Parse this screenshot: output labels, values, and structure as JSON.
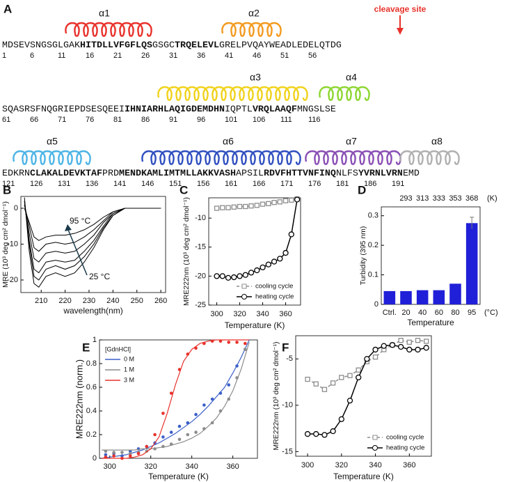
{
  "sequence_panel": {
    "label": "A",
    "cleavage_label": "cleavage site",
    "helices": [
      {
        "label": "α1",
        "color": "#e8322b"
      },
      {
        "label": "α2",
        "color": "#f39a1e"
      },
      {
        "label": "α3",
        "color": "#f0d21a"
      },
      {
        "label": "α4",
        "color": "#8cd630"
      },
      {
        "label": "α5",
        "color": "#4cb4e6"
      },
      {
        "label": "α6",
        "color": "#2f4fc0"
      },
      {
        "label": "α7",
        "color": "#8a4fb5"
      },
      {
        "label": "α8",
        "color": "#b0b0b0"
      }
    ],
    "lines": [
      {
        "segments": [
          {
            "text": "MDSEVSNGSGLGAK",
            "bold": false
          },
          {
            "text": "HITDLLVFGFLQS",
            "bold": true
          },
          {
            "text": "GSGC",
            "bold": false
          },
          {
            "text": "TRQELEVL",
            "bold": true
          },
          {
            "text": "GRELPVQAYWEADLEDELQTDG",
            "bold": false
          }
        ],
        "numbers": [
          1,
          6,
          11,
          16,
          21,
          26,
          31,
          36,
          41,
          46,
          51,
          56
        ]
      },
      {
        "segments": [
          {
            "text": "SQASRSFNQGRIEPDSESQEEI",
            "bold": false
          },
          {
            "text": "IHNIARHLAQIGDEMDHN",
            "bold": true
          },
          {
            "text": "IQPTL",
            "bold": false
          },
          {
            "text": "VRQLAAQF",
            "bold": true
          },
          {
            "text": "MNGSLSE",
            "bold": false
          }
        ],
        "numbers": [
          61,
          66,
          71,
          76,
          81,
          86,
          91,
          96,
          101,
          106,
          111,
          116
        ]
      },
      {
        "segments": [
          {
            "text": "EDKRN",
            "bold": false
          },
          {
            "text": "CLAKALDEVKTAF",
            "bold": true
          },
          {
            "text": "PRD",
            "bold": false
          },
          {
            "text": "MENDKAMLIMTMLLAKKVASH",
            "bold": true
          },
          {
            "text": "APSIL",
            "bold": false
          },
          {
            "text": "RDVFHTTVNFINQ",
            "bold": true
          },
          {
            "text": "NLFS",
            "bold": false
          },
          {
            "text": "YVRNLVRN",
            "bold": true
          },
          {
            "text": "EMD",
            "bold": false
          }
        ],
        "numbers": [
          121,
          126,
          131,
          136,
          141,
          146,
          151,
          156,
          161,
          166,
          171,
          176,
          181,
          186,
          191
        ]
      }
    ]
  },
  "chart_data": [
    {
      "type": "line",
      "panel": "B",
      "ylabel": "MRE (10³ deg cm² dmol⁻¹)",
      "xlabel": "wavelength(nm)",
      "x": [
        203,
        205,
        207,
        209,
        212,
        216,
        220,
        224,
        228,
        232,
        236,
        240,
        245,
        250,
        260
      ],
      "xlim": [
        201.5,
        262
      ],
      "ylim": [
        -23.5,
        3.3
      ],
      "xticks": [
        210,
        220,
        230,
        240,
        250,
        260
      ],
      "yticks": [
        0,
        -10,
        -20
      ],
      "annotations": [
        {
          "text": "95 °C"
        },
        {
          "text": "25 °C"
        }
      ],
      "series": [
        {
          "color": "#000000",
          "values": [
            3,
            -12,
            -21,
            -22,
            -19,
            -18,
            -19,
            -18,
            -15,
            -11,
            -6,
            -2,
            0,
            0,
            0
          ]
        },
        {
          "color": "#000000",
          "values": [
            2,
            -10,
            -19,
            -20,
            -17,
            -16,
            -17,
            -16,
            -13.5,
            -10,
            -5.5,
            -2,
            0,
            0,
            0
          ]
        },
        {
          "color": "#000000",
          "values": [
            2,
            -9,
            -17,
            -18,
            -15,
            -14.5,
            -15,
            -14.5,
            -12,
            -9,
            -5,
            -1.5,
            0,
            0,
            0
          ]
        },
        {
          "color": "#000000",
          "values": [
            1,
            -7,
            -14,
            -15,
            -12.5,
            -12,
            -12.5,
            -12,
            -10,
            -7.5,
            -4,
            -1.5,
            0,
            0,
            0
          ]
        },
        {
          "color": "#000000",
          "values": [
            1,
            -5,
            -11,
            -12,
            -10,
            -9.5,
            -10,
            -9.5,
            -8,
            -6,
            -3.5,
            -1,
            0,
            0,
            0
          ]
        },
        {
          "color": "#000000",
          "values": [
            0,
            -4,
            -8,
            -9,
            -8,
            -7.5,
            -7.5,
            -7,
            -6,
            -4.5,
            -2.5,
            -1,
            0,
            0,
            0
          ]
        }
      ]
    },
    {
      "type": "line",
      "panel": "C",
      "ylabel": "MRE222nm (10³ deg cm² dmol⁻¹)",
      "xlabel": "Temperature (K)",
      "x": [
        300,
        305,
        310,
        315,
        320,
        325,
        330,
        335,
        340,
        345,
        350,
        355,
        360,
        365,
        370
      ],
      "xlim": [
        293,
        373
      ],
      "ylim": [
        -25,
        -6.5
      ],
      "xticks": [
        300,
        320,
        340,
        360
      ],
      "yticks": [
        -10,
        -15,
        -20,
        -25
      ],
      "legend": "lower right",
      "series": [
        {
          "name": "cooling cycle",
          "color": "#8c8c8c",
          "marker": "square",
          "linestyle": "dashed",
          "values": [
            -8.3,
            -8.2,
            -8.2,
            -8.1,
            -8.0,
            -8.0,
            -7.9,
            -7.8,
            -7.6,
            -7.5,
            -7.3,
            -7.2,
            -7.0,
            -6.9,
            -6.7
          ]
        },
        {
          "name": "heating cycle",
          "color": "#000000",
          "marker": "circle",
          "linestyle": "solid",
          "values": [
            -20,
            -20,
            -20.3,
            -20.2,
            -20,
            -19.8,
            -19.4,
            -19,
            -18.5,
            -18,
            -17.5,
            -17,
            -16,
            -12.8,
            -6.8
          ]
        }
      ]
    },
    {
      "type": "bar",
      "panel": "D",
      "ylabel": "Turbidity (395 nm)",
      "xlabel": "Temperature",
      "color": "#2020d8",
      "categories": [
        "Ctrl.",
        "20",
        "40",
        "60",
        "80",
        "95"
      ],
      "values": [
        0.045,
        0.045,
        0.048,
        0.048,
        0.07,
        0.275
      ],
      "errors": [
        null,
        null,
        null,
        null,
        null,
        0.02
      ],
      "ylim": [
        0,
        0.33
      ],
      "yticks": [
        0,
        0.1,
        0.2,
        0.3
      ],
      "top_labels": [
        293,
        313,
        333,
        353,
        368
      ],
      "top_unit": "(K)",
      "x_unit": "(°C)"
    },
    {
      "type": "scatter",
      "panel": "E",
      "ylabel": "MRE222nm (norm.)",
      "xlabel": "Temperature (K)",
      "legend": "upper left",
      "legend_title": "[GdnHCl]",
      "x": [
        298,
        302,
        306,
        310,
        314,
        318,
        322,
        326,
        330,
        334,
        338,
        342,
        346,
        350,
        354,
        358,
        362,
        366
      ],
      "fit_x": [
        296,
        300,
        304,
        308,
        312,
        316,
        320,
        324,
        328,
        332,
        336,
        340,
        344,
        348,
        352,
        356,
        360,
        364,
        368
      ],
      "xlim": [
        295,
        372
      ],
      "ylim": [
        0,
        1
      ],
      "xticks": [
        300,
        320,
        340,
        360
      ],
      "yticks": [
        0,
        0.2,
        0.4,
        0.6,
        0.8,
        1
      ],
      "series": [
        {
          "name": "0 M",
          "color": "#3a5fc8",
          "values": [
            0.03,
            0.04,
            0.02,
            0.06,
            0.08,
            0.1,
            0.13,
            0.18,
            0.22,
            0.27,
            0.3,
            0.37,
            0.45,
            0.5,
            0.55,
            0.62,
            0.78,
            0.92
          ],
          "fit": [
            0,
            0.01,
            0.02,
            0.03,
            0.05,
            0.07,
            0.1,
            0.13,
            0.17,
            0.21,
            0.26,
            0.31,
            0.37,
            0.44,
            0.52,
            0.6,
            0.72,
            0.85,
            1
          ]
        },
        {
          "name": "1 M",
          "color": "#8c8c8c",
          "values": [
            0.06,
            0.05,
            0.05,
            0.04,
            0.05,
            0.06,
            0.08,
            0.1,
            0.12,
            0.16,
            0.2,
            0.22,
            0.25,
            0.3,
            0.4,
            0.5,
            0.68,
            0.92
          ],
          "fit": [
            0.07,
            0.07,
            0.07,
            0.07,
            0.07,
            0.08,
            0.08,
            0.09,
            0.1,
            0.12,
            0.14,
            0.17,
            0.21,
            0.27,
            0.34,
            0.44,
            0.57,
            0.75,
            0.98
          ]
        },
        {
          "name": "3 M",
          "color": "#e8322b",
          "values": [
            0.01,
            0.02,
            0,
            0.02,
            0.04,
            0.1,
            0.2,
            0.38,
            0.55,
            0.75,
            0.88,
            0.93,
            0.97,
            0.99,
            0.99,
            0.98,
            0.98,
            0.97
          ],
          "fit": [
            0,
            0,
            0,
            0,
            0.01,
            0.03,
            0.08,
            0.18,
            0.38,
            0.62,
            0.82,
            0.92,
            0.97,
            0.99,
            1,
            1,
            1,
            1,
            1
          ]
        }
      ]
    },
    {
      "type": "line",
      "panel": "F",
      "ylabel": "MRE222nm (10³ deg cm² dmol⁻¹)",
      "xlabel": "Temperature (K)",
      "x": [
        300,
        305,
        310,
        315,
        320,
        325,
        330,
        335,
        340,
        345,
        350,
        355,
        360,
        365,
        370
      ],
      "xlim": [
        293,
        373
      ],
      "ylim": [
        -15.5,
        -2.5
      ],
      "xticks": [
        300,
        320,
        340,
        360
      ],
      "yticks": [
        -5,
        -10,
        -15
      ],
      "legend": "lower right",
      "series": [
        {
          "name": "cooling cycle",
          "color": "#8c8c8c",
          "marker": "square",
          "linestyle": "dashed",
          "values": [
            -7.2,
            -7.7,
            -8.3,
            -7.6,
            -7,
            -6.8,
            -6.2,
            -5.3,
            -4.8,
            -4,
            -3.5,
            -3,
            -3.2,
            -3,
            -3.1
          ]
        },
        {
          "name": "heating cycle",
          "color": "#000000",
          "marker": "circle",
          "linestyle": "solid",
          "values": [
            -13.1,
            -13.1,
            -13.2,
            -12.8,
            -11.5,
            -9.5,
            -7,
            -5,
            -4,
            -3.6,
            -3.5,
            -3.7,
            -4,
            -4,
            -3.8
          ]
        }
      ]
    }
  ]
}
